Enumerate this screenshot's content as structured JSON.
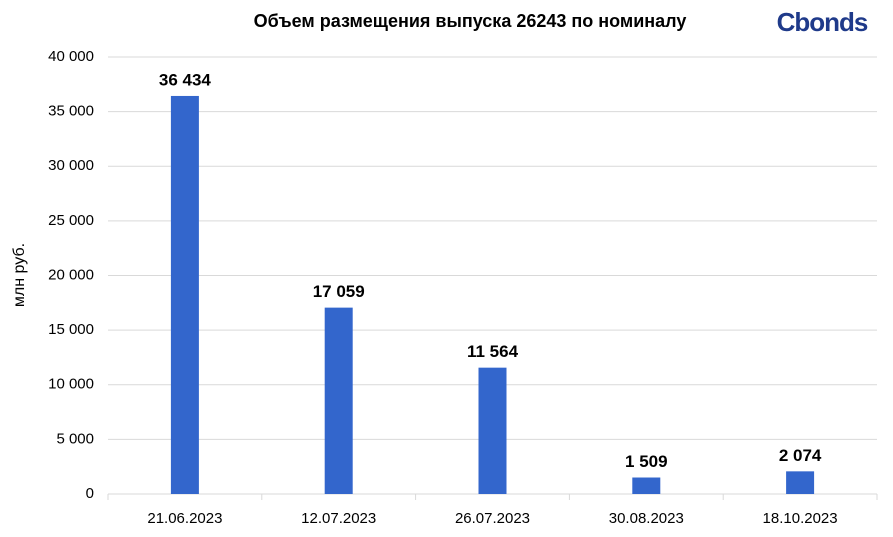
{
  "chart_data": {
    "type": "bar",
    "title": "Объем размещения выпуска 26243 по номиналу",
    "logo": "Cbonds",
    "y_label": "млн руб.",
    "categories": [
      "21.06.2023",
      "12.07.2023",
      "26.07.2023",
      "30.08.2023",
      "18.10.2023"
    ],
    "values": [
      36434,
      17059,
      11564,
      1509,
      2074
    ],
    "value_labels": [
      "36 434",
      "17 059",
      "11 564",
      "1 509",
      "2 074"
    ],
    "color": "#3366cc",
    "ylim": [
      0,
      40000
    ],
    "yticks": [
      0,
      {
        "value": 5000,
        "label": "5 000"
      },
      {
        "value": 10000,
        "label": "10 000"
      },
      {
        "value": 15000,
        "label": "15 000"
      },
      {
        "value": 20000,
        "label": "20 000"
      },
      {
        "value": 25000,
        "label": "25 000"
      },
      {
        "value": 30000,
        "label": "30 000"
      },
      {
        "value": 35000,
        "label": "35 000"
      },
      {
        "value": 40000,
        "label": "40 000"
      }
    ],
    "grid": true
  }
}
